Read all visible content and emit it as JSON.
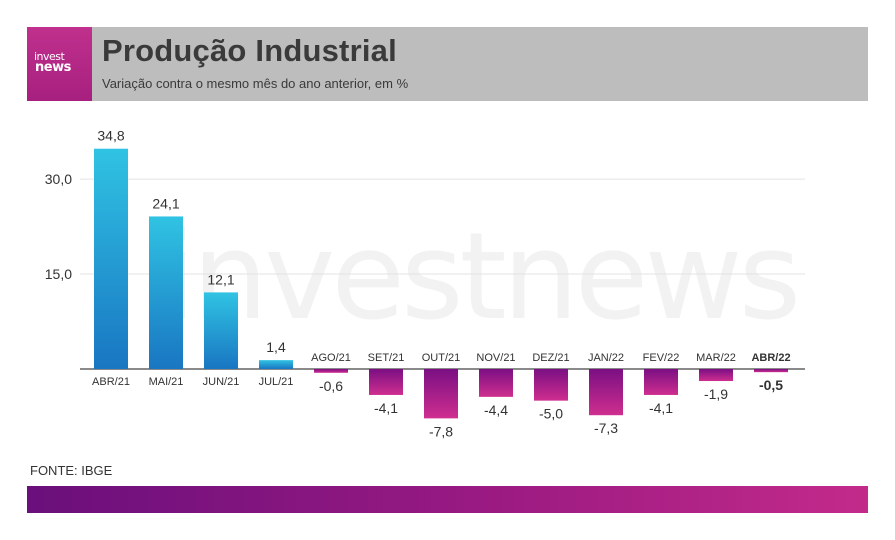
{
  "header": {
    "logo_line1": "invest",
    "logo_line2": "news",
    "title": "Produção Industrial",
    "subtitle": "Variação contra o mesmo mês do ano anterior, em %"
  },
  "watermark": "investnews",
  "source": "FONTE: IBGE",
  "colors": {
    "positive_top": "#30c3e3",
    "positive_bottom": "#1976c2",
    "negative_top": "#7a0f83",
    "negative_bottom": "#cf2e8f",
    "header_bg": "#bdbdbd",
    "brand": "#b6267f"
  },
  "chart_data": {
    "type": "bar",
    "categories": [
      "ABR/21",
      "MAI/21",
      "JUN/21",
      "JUL/21",
      "AGO/21",
      "SET/21",
      "OUT/21",
      "NOV/21",
      "DEZ/21",
      "JAN/22",
      "FEV/22",
      "MAR/22",
      "ABR/22"
    ],
    "values": [
      34.8,
      24.1,
      12.1,
      1.4,
      -0.6,
      -4.1,
      -7.8,
      -4.4,
      -5.0,
      -7.3,
      -4.1,
      -1.9,
      -0.5
    ],
    "value_labels": [
      "34,8",
      "24,1",
      "12,1",
      "1,4",
      "-0,6",
      "-4,1",
      "-7,8",
      "-4,4",
      "-5,0",
      "-7,3",
      "-4,1",
      "-1,9",
      "-0,5"
    ],
    "highlight_index": 12,
    "yticks": [
      15.0,
      30.0
    ],
    "ytick_labels": [
      "15,0",
      "30,0"
    ],
    "ylim": [
      -8,
      35
    ],
    "grid": true,
    "title": "Produção Industrial",
    "xlabel": "",
    "ylabel": ""
  }
}
